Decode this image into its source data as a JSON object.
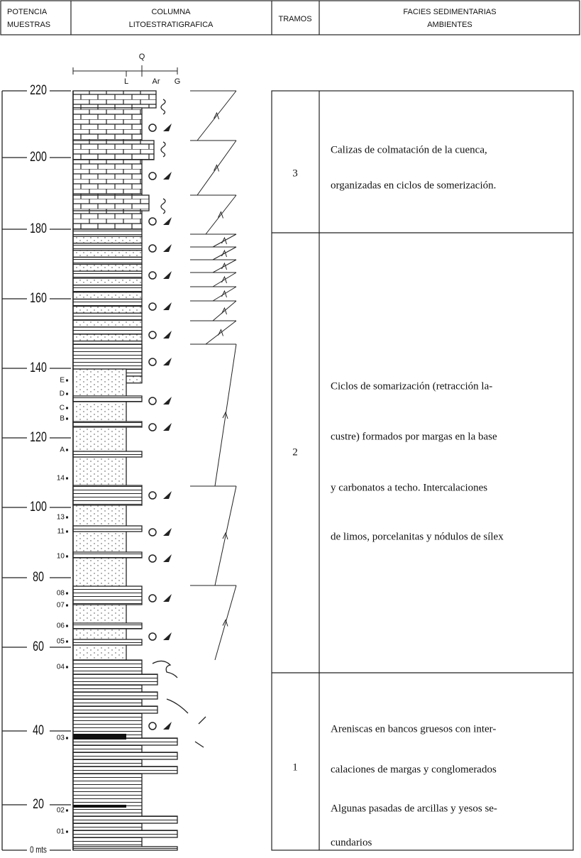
{
  "header": {
    "potencia": "POTENCIA",
    "muestras": "MUESTRAS",
    "columna": "COLUMNA",
    "litoestratigrafica": "LITOESTRATIGRAFICA",
    "tramos": "TRAMOS",
    "facies": "FACIES SEDIMENTARIAS",
    "ambientes": "AMBIENTES"
  },
  "grain_scale": [
    "Q",
    "L",
    "Ar",
    "G"
  ],
  "depth_labels": [
    220,
    200,
    180,
    160,
    140,
    120,
    100,
    80,
    60,
    40,
    20,
    "0 mts"
  ],
  "samples": [
    "E",
    "D",
    "C",
    "B",
    "A",
    "14",
    "13",
    "11",
    "10",
    "08",
    "07",
    "06",
    "05",
    "04",
    "03",
    "02",
    "01"
  ],
  "tramos": [
    {
      "number": 3,
      "lines": [
        "Calizas de colmatación de la cuenca,",
        "organizadas en ciclos de somerización."
      ]
    },
    {
      "number": 2,
      "lines": [
        "Ciclos de somarización (retracción la-",
        "custre) formados por margas en la base",
        "y carbonatos a techo. Intercalaciones",
        "de limos, porcelanitas y nódulos de sílex"
      ]
    },
    {
      "number": 1,
      "lines": [
        "Areniscas en bancos gruesos con inter-",
        "calaciones de margas y conglomerados",
        "Algunas pasadas de arcillas y yesos se-",
        "cundarios"
      ]
    }
  ]
}
